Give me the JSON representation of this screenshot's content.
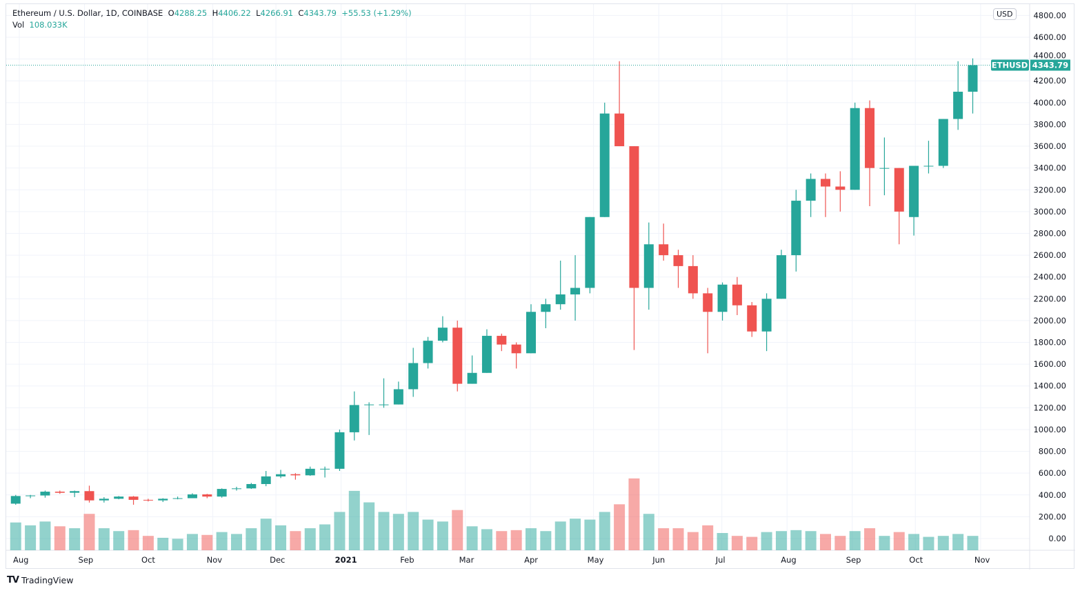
{
  "header": {
    "symbol_title": "Ethereum / U.S. Dollar, 1D, COINBASE",
    "open_label": "O",
    "open": "4288.25",
    "high_label": "H",
    "high": "4406.22",
    "low_label": "L",
    "low": "4266.91",
    "close_label": "C",
    "close": "4343.79",
    "change": "+55.53 (+1.29%)",
    "volume_label": "Vol",
    "volume": "108.033K"
  },
  "currency_button": "USD",
  "price_tag": {
    "symbol": "ETHUSD",
    "value": "4343.79"
  },
  "footer": {
    "brand": "TradingView",
    "logo_icon": "tradingview-logo-icon"
  },
  "colors": {
    "up": "#26a69a",
    "down": "#ef5350",
    "grid": "#f0f3fa",
    "text": "#131722"
  },
  "chart_data": {
    "type": "candlestick",
    "interval_shown": "1D",
    "ylim": [
      0,
      4800
    ],
    "yticks": [
      "0.00",
      "200.00",
      "400.00",
      "600.00",
      "800.00",
      "1000.00",
      "1200.00",
      "1400.00",
      "1600.00",
      "1800.00",
      "2000.00",
      "2200.00",
      "2400.00",
      "2600.00",
      "2800.00",
      "3000.00",
      "3200.00",
      "3400.00",
      "3600.00",
      "3800.00",
      "4000.00",
      "4200.00",
      "4400.00",
      "4600.00",
      "4800.00"
    ],
    "xticks": [
      {
        "label": "Aug",
        "date": "2020-08-01"
      },
      {
        "label": "Sep",
        "date": "2020-09-01"
      },
      {
        "label": "Oct",
        "date": "2020-10-01"
      },
      {
        "label": "Nov",
        "date": "2020-11-01"
      },
      {
        "label": "Dec",
        "date": "2020-12-01"
      },
      {
        "label": "2021",
        "date": "2021-01-01"
      },
      {
        "label": "Feb",
        "date": "2021-02-01"
      },
      {
        "label": "Mar",
        "date": "2021-03-01"
      },
      {
        "label": "Apr",
        "date": "2021-04-01"
      },
      {
        "label": "May",
        "date": "2021-05-01"
      },
      {
        "label": "Jun",
        "date": "2021-06-01"
      },
      {
        "label": "Jul",
        "date": "2021-07-01"
      },
      {
        "label": "Aug",
        "date": "2021-08-01"
      },
      {
        "label": "Sep",
        "date": "2021-09-01"
      },
      {
        "label": "Oct",
        "date": "2021-10-01"
      },
      {
        "label": "Nov",
        "date": "2021-11-01"
      }
    ],
    "last_price": 4343.79,
    "grid": true,
    "candles_columns": [
      "date",
      "open",
      "high",
      "low",
      "close",
      "volume_k"
    ],
    "candles": [
      [
        "2020-07-27",
        320,
        400,
        310,
        390,
        290
      ],
      [
        "2020-08-03",
        390,
        400,
        370,
        395,
        260
      ],
      [
        "2020-08-10",
        395,
        440,
        375,
        430,
        300
      ],
      [
        "2020-08-17",
        430,
        440,
        410,
        420,
        250
      ],
      [
        "2020-08-24",
        420,
        440,
        380,
        435,
        230
      ],
      [
        "2020-08-31",
        435,
        485,
        330,
        350,
        380
      ],
      [
        "2020-09-07",
        350,
        380,
        330,
        365,
        230
      ],
      [
        "2020-09-14",
        365,
        390,
        360,
        385,
        200
      ],
      [
        "2020-09-21",
        385,
        390,
        310,
        355,
        210
      ],
      [
        "2020-09-28",
        355,
        365,
        340,
        350,
        150
      ],
      [
        "2020-10-05",
        350,
        370,
        335,
        365,
        130
      ],
      [
        "2020-10-12",
        365,
        385,
        360,
        370,
        120
      ],
      [
        "2020-10-19",
        370,
        415,
        370,
        405,
        170
      ],
      [
        "2020-10-26",
        405,
        410,
        370,
        385,
        160
      ],
      [
        "2020-11-02",
        385,
        460,
        375,
        455,
        190
      ],
      [
        "2020-11-09",
        455,
        475,
        440,
        460,
        170
      ],
      [
        "2020-11-16",
        460,
        510,
        455,
        500,
        230
      ],
      [
        "2020-11-23",
        500,
        620,
        480,
        570,
        330
      ],
      [
        "2020-11-30",
        570,
        630,
        555,
        590,
        260
      ],
      [
        "2020-12-07",
        590,
        600,
        540,
        580,
        200
      ],
      [
        "2020-12-14",
        580,
        660,
        575,
        640,
        230
      ],
      [
        "2020-12-21",
        640,
        660,
        560,
        640,
        270
      ],
      [
        "2020-12-28",
        640,
        1000,
        620,
        975,
        400
      ],
      [
        "2021-01-04",
        975,
        1350,
        900,
        1225,
        620
      ],
      [
        "2021-01-11",
        1225,
        1250,
        950,
        1230,
        500
      ],
      [
        "2021-01-18",
        1230,
        1470,
        1200,
        1230,
        400
      ],
      [
        "2021-01-25",
        1230,
        1440,
        1230,
        1370,
        380
      ],
      [
        "2021-02-01",
        1370,
        1750,
        1300,
        1610,
        400
      ],
      [
        "2021-02-08",
        1610,
        1850,
        1560,
        1815,
        320
      ],
      [
        "2021-02-15",
        1815,
        2040,
        1800,
        1935,
        300
      ],
      [
        "2021-02-22",
        1935,
        2000,
        1350,
        1420,
        420
      ],
      [
        "2021-03-01",
        1420,
        1680,
        1420,
        1520,
        250
      ],
      [
        "2021-03-08",
        1520,
        1920,
        1520,
        1860,
        220
      ],
      [
        "2021-03-15",
        1860,
        1880,
        1720,
        1780,
        200
      ],
      [
        "2021-03-22",
        1780,
        1800,
        1560,
        1700,
        210
      ],
      [
        "2021-03-29",
        1700,
        2150,
        1700,
        2080,
        230
      ],
      [
        "2021-04-05",
        2080,
        2200,
        1930,
        2150,
        200
      ],
      [
        "2021-04-12",
        2150,
        2550,
        2100,
        2240,
        300
      ],
      [
        "2021-04-19",
        2240,
        2600,
        2000,
        2300,
        330
      ],
      [
        "2021-04-26",
        2300,
        2950,
        2250,
        2950,
        320
      ],
      [
        "2021-05-03",
        2950,
        4000,
        2950,
        3900,
        400
      ],
      [
        "2021-05-10",
        3900,
        4380,
        3600,
        3600,
        480
      ],
      [
        "2021-05-17",
        3600,
        3600,
        1730,
        2300,
        750
      ],
      [
        "2021-05-24",
        2300,
        2900,
        2100,
        2700,
        380
      ],
      [
        "2021-05-31",
        2700,
        2890,
        2550,
        2600,
        230
      ],
      [
        "2021-06-07",
        2600,
        2650,
        2300,
        2500,
        230
      ],
      [
        "2021-06-14",
        2500,
        2600,
        2200,
        2250,
        190
      ],
      [
        "2021-06-21",
        2250,
        2300,
        1700,
        2080,
        260
      ],
      [
        "2021-06-28",
        2080,
        2350,
        2000,
        2330,
        180
      ],
      [
        "2021-07-05",
        2330,
        2400,
        2050,
        2140,
        150
      ],
      [
        "2021-07-12",
        2140,
        2170,
        1850,
        1900,
        140
      ],
      [
        "2021-07-19",
        1900,
        2250,
        1720,
        2200,
        190
      ],
      [
        "2021-07-26",
        2200,
        2650,
        2200,
        2600,
        200
      ],
      [
        "2021-08-02",
        2600,
        3200,
        2450,
        3100,
        210
      ],
      [
        "2021-08-09",
        3100,
        3350,
        2950,
        3300,
        200
      ],
      [
        "2021-08-16",
        3300,
        3350,
        2950,
        3230,
        170
      ],
      [
        "2021-08-23",
        3230,
        3370,
        3000,
        3200,
        150
      ],
      [
        "2021-08-30",
        3200,
        4000,
        3200,
        3950,
        200
      ],
      [
        "2021-09-06",
        3950,
        4020,
        3050,
        3400,
        230
      ],
      [
        "2021-09-13",
        3400,
        3680,
        3150,
        3400,
        150
      ],
      [
        "2021-09-20",
        3400,
        3400,
        2700,
        3000,
        190
      ],
      [
        "2021-09-27",
        2950,
        3400,
        2780,
        3420,
        170
      ],
      [
        "2021-10-04",
        3420,
        3650,
        3350,
        3420,
        140
      ],
      [
        "2021-10-11",
        3420,
        3850,
        3400,
        3850,
        150
      ],
      [
        "2021-10-18",
        3850,
        4380,
        3750,
        4100,
        170
      ],
      [
        "2021-10-25",
        4100,
        4406,
        3900,
        4344,
        150
      ]
    ]
  }
}
